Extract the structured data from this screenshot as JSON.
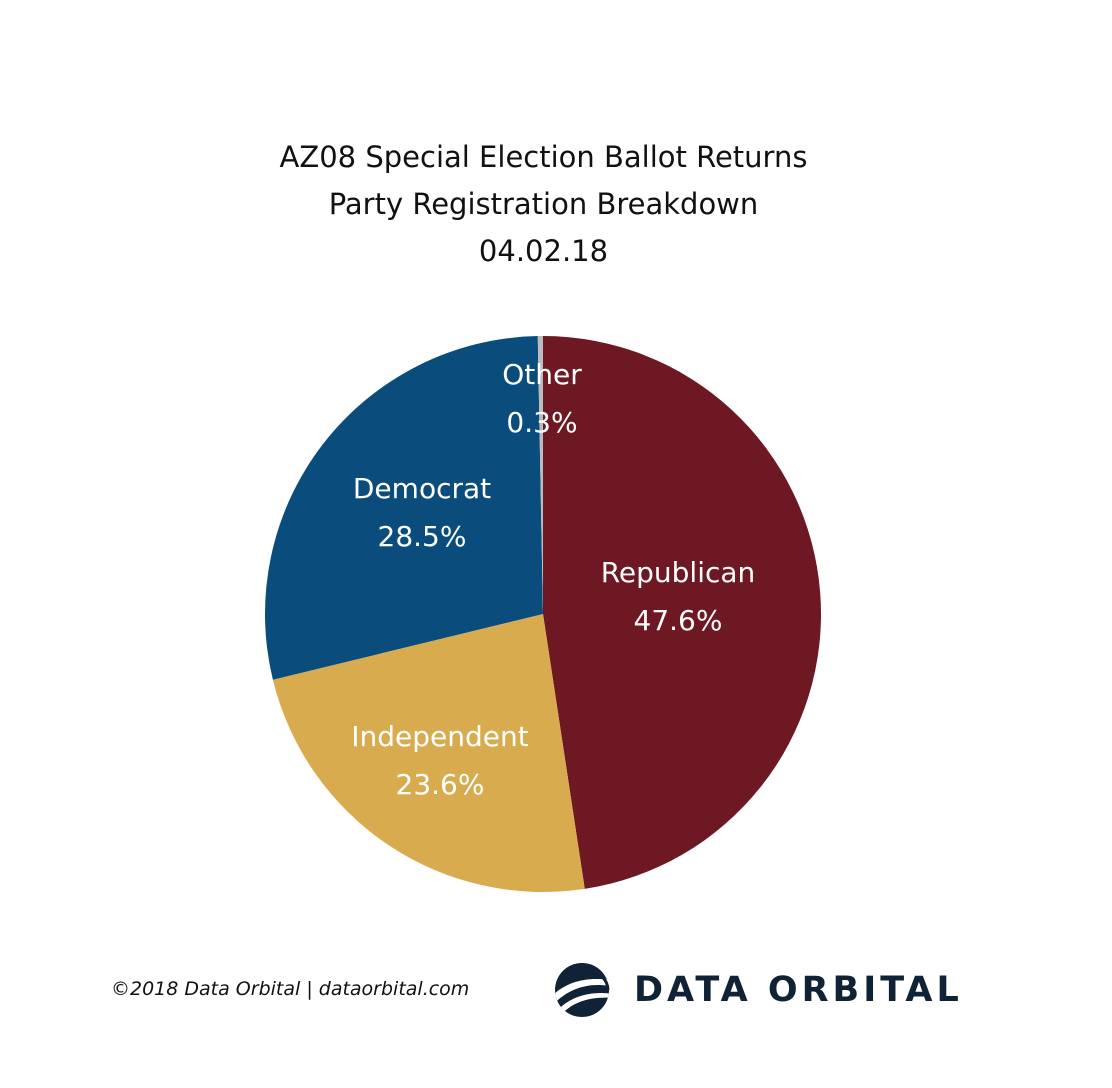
{
  "title": {
    "line1": "AZ08 Special Election Ballot Returns",
    "line2": "Party Registration Breakdown",
    "line3": "04.02.18"
  },
  "chart_data": {
    "type": "pie",
    "start": "12 o'clock",
    "direction": "clockwise",
    "slices": [
      {
        "label": "Republican",
        "value": 47.6,
        "display": "47.6%",
        "color": "#6d1823"
      },
      {
        "label": "Independent",
        "value": 23.6,
        "display": "23.6%",
        "color": "#d9ab4f"
      },
      {
        "label": "Democrat",
        "value": 28.5,
        "display": "28.5%",
        "color": "#0a4d7c"
      },
      {
        "label": "Other",
        "value": 0.3,
        "display": "0.3%",
        "color": "#bcbcbc"
      }
    ]
  },
  "footer": {
    "credit": "©2018 Data Orbital | dataorbital.com",
    "logo_text": "DATA ORBITAL",
    "logo_color": "#0f2236"
  }
}
